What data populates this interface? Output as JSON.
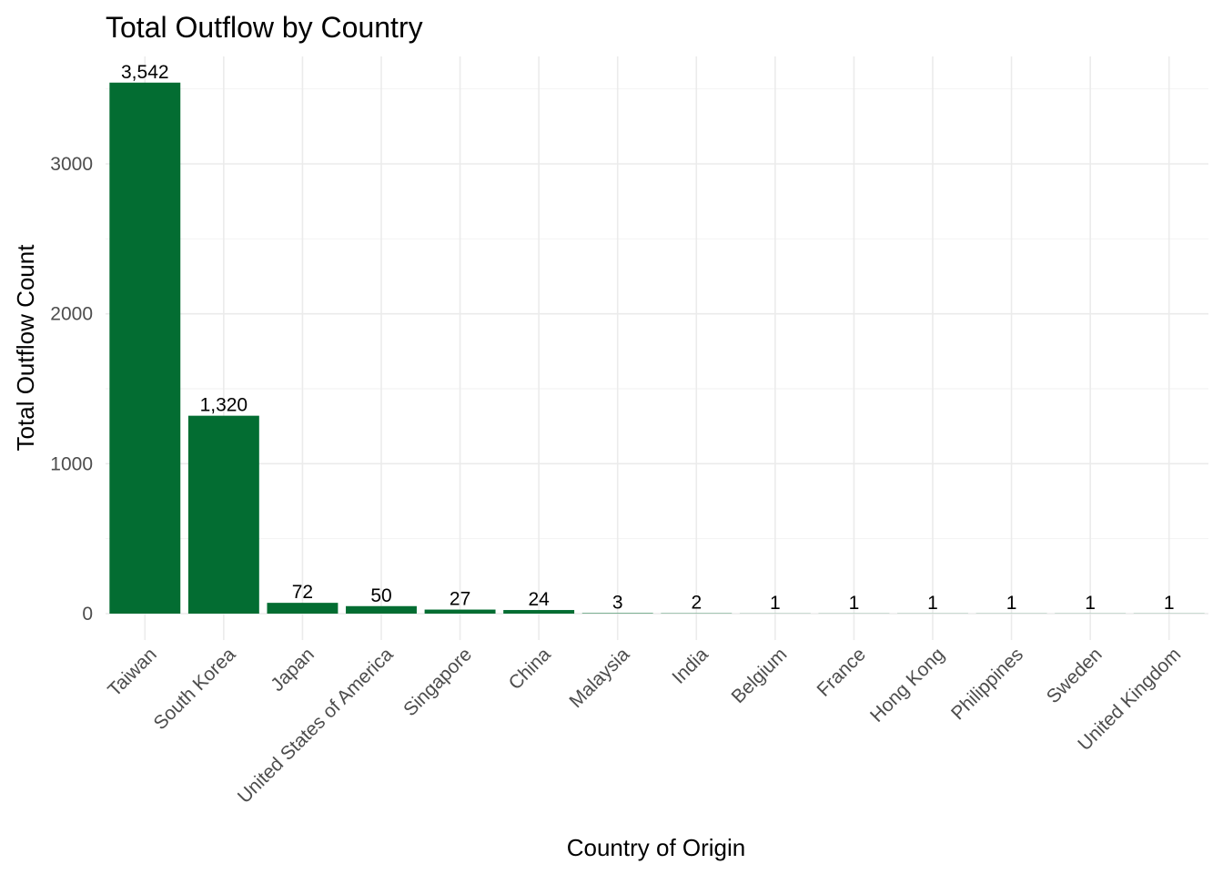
{
  "chart_data": {
    "type": "bar",
    "title": "Total Outflow by Country",
    "xlabel": "Country of Origin",
    "ylabel": "Total Outflow Count",
    "categories": [
      "Taiwan",
      "South Korea",
      "Japan",
      "United States of America",
      "Singapore",
      "China",
      "Malaysia",
      "India",
      "Belgium",
      "France",
      "Hong Kong",
      "Philippines",
      "Sweden",
      "United Kingdom"
    ],
    "values": [
      3542,
      1320,
      72,
      50,
      27,
      24,
      3,
      2,
      1,
      1,
      1,
      1,
      1,
      1
    ],
    "value_labels": [
      "3,542",
      "1,320",
      "72",
      "50",
      "27",
      "24",
      "3",
      "2",
      "1",
      "1",
      "1",
      "1",
      "1",
      "1"
    ],
    "y_ticks": [
      0,
      1000,
      2000,
      3000
    ],
    "y_tick_labels": [
      "0",
      "1000",
      "2000",
      "3000"
    ],
    "ylim": [
      0,
      3720
    ],
    "grid": true,
    "legend": "none",
    "bar_color": "#036d32"
  }
}
